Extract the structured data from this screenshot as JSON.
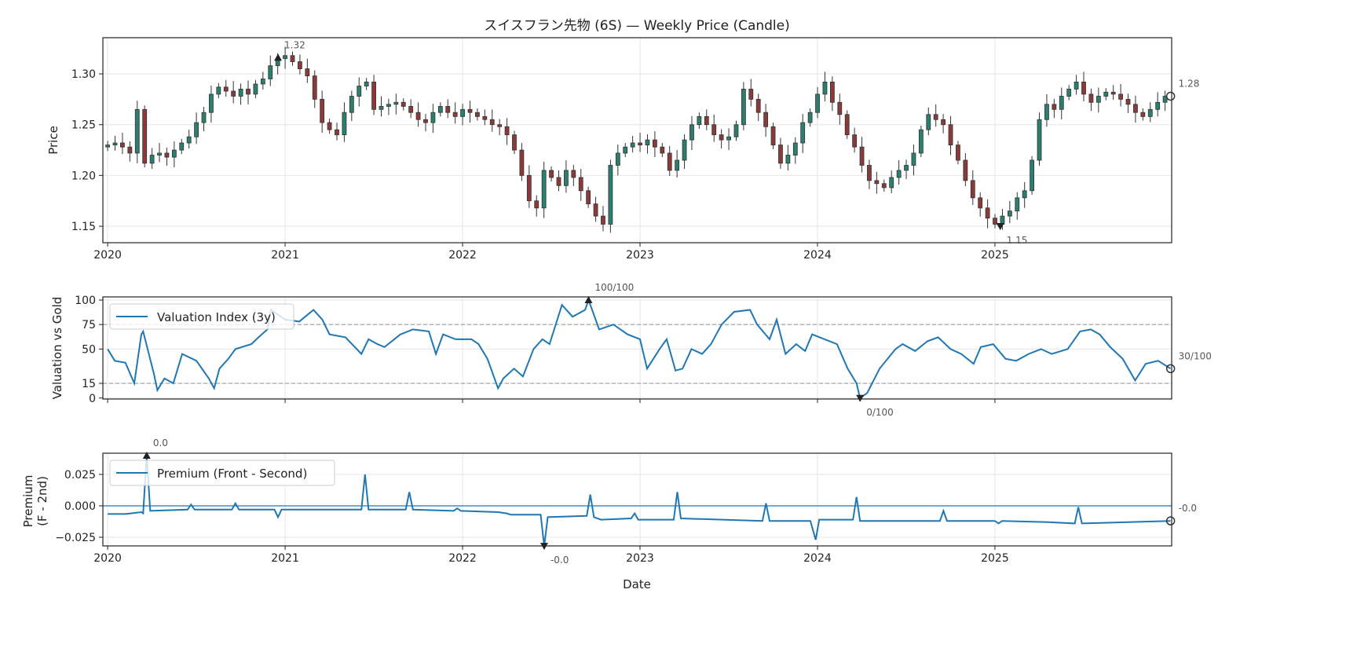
{
  "title": "スイスフラン先物 (6S) — Weekly Price (Candle)",
  "colors": {
    "line": "#1f77b4",
    "up": "#2a7f6f",
    "down": "#8b3a3a",
    "wick": "#333333",
    "ref": "#999999"
  },
  "chart_data": [
    {
      "type": "candlestick",
      "title": "スイスフラン先物 (6S) — Weekly Price (Candle)",
      "ylabel": "Price",
      "xlabel": "",
      "xlim": [
        2019.973,
        2025.996
      ],
      "ylim": [
        1.1338,
        1.3356
      ],
      "grid": true,
      "xticks": [
        2020,
        2021,
        2022,
        2023,
        2024,
        2025
      ],
      "xtick_labels": [
        "2020",
        "2021",
        "2022",
        "2023",
        "2024",
        "2025"
      ],
      "yticks": [
        1.15,
        1.2,
        1.25,
        1.3
      ],
      "ytick_labels": [
        "1.15",
        "1.20",
        "1.25",
        "1.30"
      ],
      "start": 2020.0,
      "step_years": 0.04167,
      "closes": [
        1.23,
        1.232,
        1.228,
        1.222,
        1.265,
        1.212,
        1.22,
        1.222,
        1.218,
        1.225,
        1.232,
        1.238,
        1.252,
        1.262,
        1.28,
        1.287,
        1.283,
        1.278,
        1.285,
        1.28,
        1.29,
        1.295,
        1.308,
        1.315,
        1.318,
        1.312,
        1.305,
        1.298,
        1.275,
        1.252,
        1.245,
        1.24,
        1.262,
        1.278,
        1.288,
        1.292,
        1.265,
        1.268,
        1.27,
        1.272,
        1.268,
        1.262,
        1.255,
        1.252,
        1.262,
        1.268,
        1.262,
        1.258,
        1.265,
        1.262,
        1.258,
        1.255,
        1.25,
        1.248,
        1.24,
        1.225,
        1.2,
        1.175,
        1.168,
        1.205,
        1.198,
        1.19,
        1.205,
        1.198,
        1.185,
        1.172,
        1.16,
        1.152,
        1.21,
        1.222,
        1.228,
        1.232,
        1.23,
        1.235,
        1.228,
        1.222,
        1.205,
        1.215,
        1.235,
        1.25,
        1.258,
        1.25,
        1.24,
        1.235,
        1.238,
        1.25,
        1.285,
        1.275,
        1.262,
        1.248,
        1.23,
        1.212,
        1.22,
        1.232,
        1.252,
        1.262,
        1.28,
        1.292,
        1.272,
        1.26,
        1.24,
        1.228,
        1.21,
        1.195,
        1.192,
        1.188,
        1.198,
        1.205,
        1.21,
        1.222,
        1.245,
        1.26,
        1.255,
        1.25,
        1.23,
        1.215,
        1.195,
        1.178,
        1.168,
        1.158,
        1.152,
        1.16,
        1.165,
        1.178,
        1.185,
        1.215,
        1.255,
        1.27,
        1.265,
        1.278,
        1.285,
        1.292,
        1.28,
        1.272,
        1.278,
        1.282,
        1.28,
        1.275,
        1.27,
        1.262,
        1.258,
        1.265,
        1.272,
        1.278
      ],
      "annotations": [
        {
          "label": "1.32",
          "x": 2020.96,
          "y": 1.316,
          "marker": "max"
        },
        {
          "label": "1.15",
          "x": 2025.03,
          "y": 1.15,
          "marker": "min"
        },
        {
          "label": "1.28",
          "x": 2025.99,
          "y": 1.278,
          "marker": "last"
        }
      ]
    },
    {
      "type": "line",
      "ylabel": "Valuation vs Gold",
      "xlim": [
        2019.973,
        2025.996
      ],
      "ylim": [
        -1,
        103.2
      ],
      "yticks": [
        0,
        15,
        50,
        75,
        100
      ],
      "ytick_labels": [
        "0",
        "15",
        "50",
        "75",
        "100"
      ],
      "reference_lines": [
        15,
        75
      ],
      "legend": "top-left",
      "series": [
        {
          "name": "Valuation Index (3y)",
          "points": [
            [
              2020.0,
              50
            ],
            [
              2020.04,
              38
            ],
            [
              2020.1,
              36
            ],
            [
              2020.15,
              15
            ],
            [
              2020.19,
              65
            ],
            [
              2020.2,
              68
            ],
            [
              2020.26,
              25
            ],
            [
              2020.28,
              8
            ],
            [
              2020.32,
              20
            ],
            [
              2020.37,
              15
            ],
            [
              2020.42,
              45
            ],
            [
              2020.5,
              38
            ],
            [
              2020.57,
              20
            ],
            [
              2020.6,
              10
            ],
            [
              2020.63,
              30
            ],
            [
              2020.68,
              40
            ],
            [
              2020.72,
              50
            ],
            [
              2020.81,
              55
            ],
            [
              2020.85,
              62
            ],
            [
              2020.9,
              70
            ],
            [
              2020.92,
              90
            ],
            [
              2021.0,
              80
            ],
            [
              2021.08,
              78
            ],
            [
              2021.16,
              90
            ],
            [
              2021.21,
              80
            ],
            [
              2021.25,
              65
            ],
            [
              2021.34,
              62
            ],
            [
              2021.43,
              45
            ],
            [
              2021.47,
              60
            ],
            [
              2021.52,
              55
            ],
            [
              2021.56,
              52
            ],
            [
              2021.65,
              65
            ],
            [
              2021.72,
              70
            ],
            [
              2021.81,
              68
            ],
            [
              2021.85,
              45
            ],
            [
              2021.89,
              65
            ],
            [
              2021.96,
              60
            ],
            [
              2022.05,
              60
            ],
            [
              2022.09,
              55
            ],
            [
              2022.14,
              40
            ],
            [
              2022.18,
              20
            ],
            [
              2022.2,
              10
            ],
            [
              2022.23,
              20
            ],
            [
              2022.29,
              30
            ],
            [
              2022.34,
              22
            ],
            [
              2022.4,
              50
            ],
            [
              2022.45,
              60
            ],
            [
              2022.49,
              55
            ],
            [
              2022.56,
              95
            ],
            [
              2022.62,
              83
            ],
            [
              2022.69,
              90
            ],
            [
              2022.71,
              100
            ],
            [
              2022.77,
              70
            ],
            [
              2022.85,
              75
            ],
            [
              2022.93,
              65
            ],
            [
              2023.0,
              60
            ],
            [
              2023.04,
              30
            ],
            [
              2023.11,
              50
            ],
            [
              2023.15,
              60
            ],
            [
              2023.2,
              28
            ],
            [
              2023.24,
              30
            ],
            [
              2023.29,
              50
            ],
            [
              2023.35,
              45
            ],
            [
              2023.4,
              55
            ],
            [
              2023.46,
              75
            ],
            [
              2023.53,
              88
            ],
            [
              2023.62,
              90
            ],
            [
              2023.66,
              75
            ],
            [
              2023.73,
              60
            ],
            [
              2023.77,
              80
            ],
            [
              2023.82,
              45
            ],
            [
              2023.88,
              55
            ],
            [
              2023.93,
              48
            ],
            [
              2023.97,
              65
            ],
            [
              2024.04,
              60
            ],
            [
              2024.11,
              55
            ],
            [
              2024.17,
              30
            ],
            [
              2024.22,
              15
            ],
            [
              2024.24,
              0
            ],
            [
              2024.28,
              5
            ],
            [
              2024.35,
              30
            ],
            [
              2024.44,
              50
            ],
            [
              2024.48,
              55
            ],
            [
              2024.55,
              48
            ],
            [
              2024.62,
              58
            ],
            [
              2024.68,
              62
            ],
            [
              2024.75,
              50
            ],
            [
              2024.81,
              45
            ],
            [
              2024.88,
              35
            ],
            [
              2024.92,
              52
            ],
            [
              2024.99,
              55
            ],
            [
              2025.06,
              40
            ],
            [
              2025.12,
              38
            ],
            [
              2025.19,
              45
            ],
            [
              2025.26,
              50
            ],
            [
              2025.32,
              45
            ],
            [
              2025.41,
              50
            ],
            [
              2025.48,
              68
            ],
            [
              2025.54,
              70
            ],
            [
              2025.59,
              65
            ],
            [
              2025.65,
              52
            ],
            [
              2025.72,
              40
            ],
            [
              2025.79,
              18
            ],
            [
              2025.85,
              35
            ],
            [
              2025.92,
              38
            ],
            [
              2025.99,
              30
            ]
          ]
        }
      ],
      "annotations": [
        {
          "label": "100/100",
          "x": 2022.71,
          "y": 100,
          "marker": "max"
        },
        {
          "label": "0/100",
          "x": 2024.24,
          "y": 0,
          "marker": "min"
        },
        {
          "label": "30/100",
          "x": 2025.99,
          "y": 30,
          "marker": "last"
        }
      ]
    },
    {
      "type": "line",
      "ylabel": "Premium\n(F - 2nd)",
      "ylabel_lines": [
        "Premium",
        "(F - 2nd)"
      ],
      "xlabel": "Date",
      "xlim": [
        2019.973,
        2025.996
      ],
      "ylim": [
        -0.0319,
        0.0419
      ],
      "yticks": [
        -0.025,
        0.0,
        0.025
      ],
      "ytick_labels": [
        "−0.025",
        "0.000",
        "0.025"
      ],
      "xticks": [
        2020,
        2021,
        2022,
        2023,
        2024,
        2025
      ],
      "xtick_labels": [
        "2020",
        "2021",
        "2022",
        "2023",
        "2024",
        "2025"
      ],
      "reference_lines": [
        0
      ],
      "legend": "top-left",
      "series": [
        {
          "name": "Premium (Front - Second)",
          "points": [
            [
              2020.0,
              -0.0065
            ],
            [
              2020.1,
              -0.0065
            ],
            [
              2020.19,
              -0.005
            ],
            [
              2020.2,
              -0.006
            ],
            [
              2020.22,
              0.04
            ],
            [
              2020.24,
              -0.004
            ],
            [
              2020.45,
              -0.003
            ],
            [
              2020.47,
              0.001
            ],
            [
              2020.49,
              -0.003
            ],
            [
              2020.7,
              -0.003
            ],
            [
              2020.72,
              0.002
            ],
            [
              2020.74,
              -0.003
            ],
            [
              2020.94,
              -0.003
            ],
            [
              2020.96,
              -0.009
            ],
            [
              2020.98,
              -0.003
            ],
            [
              2021.43,
              -0.003
            ],
            [
              2021.45,
              0.025
            ],
            [
              2021.47,
              -0.003
            ],
            [
              2021.68,
              -0.003
            ],
            [
              2021.7,
              0.011
            ],
            [
              2021.72,
              -0.003
            ],
            [
              2021.95,
              -0.004
            ],
            [
              2021.97,
              -0.002
            ],
            [
              2021.99,
              -0.004
            ],
            [
              2022.2,
              -0.005
            ],
            [
              2022.25,
              -0.006
            ],
            [
              2022.27,
              -0.007
            ],
            [
              2022.44,
              -0.007
            ],
            [
              2022.46,
              -0.032
            ],
            [
              2022.48,
              -0.009
            ],
            [
              2022.7,
              -0.008
            ],
            [
              2022.72,
              0.009
            ],
            [
              2022.74,
              -0.009
            ],
            [
              2022.78,
              -0.011
            ],
            [
              2022.95,
              -0.01
            ],
            [
              2022.97,
              -0.006
            ],
            [
              2022.99,
              -0.011
            ],
            [
              2023.19,
              -0.011
            ],
            [
              2023.21,
              0.011
            ],
            [
              2023.23,
              -0.01
            ],
            [
              2023.69,
              -0.012
            ],
            [
              2023.71,
              0.002
            ],
            [
              2023.73,
              -0.012
            ],
            [
              2023.96,
              -0.012
            ],
            [
              2023.99,
              -0.027
            ],
            [
              2024.01,
              -0.011
            ],
            [
              2024.2,
              -0.011
            ],
            [
              2024.22,
              0.007
            ],
            [
              2024.24,
              -0.012
            ],
            [
              2024.69,
              -0.012
            ],
            [
              2024.71,
              -0.004
            ],
            [
              2024.73,
              -0.012
            ],
            [
              2025.0,
              -0.012
            ],
            [
              2025.02,
              -0.014
            ],
            [
              2025.04,
              -0.012
            ],
            [
              2025.3,
              -0.013
            ],
            [
              2025.45,
              -0.014
            ],
            [
              2025.47,
              -0.001
            ],
            [
              2025.49,
              -0.014
            ],
            [
              2025.75,
              -0.013
            ],
            [
              2025.99,
              -0.012
            ]
          ]
        }
      ],
      "annotations": [
        {
          "label": "0.0",
          "x": 2020.22,
          "y": 0.04,
          "marker": "max"
        },
        {
          "label": "-0.0",
          "x": 2022.46,
          "y": -0.032,
          "marker": "min"
        },
        {
          "label": "-0.0",
          "x": 2025.99,
          "y": -0.012,
          "marker": "last"
        }
      ]
    }
  ]
}
